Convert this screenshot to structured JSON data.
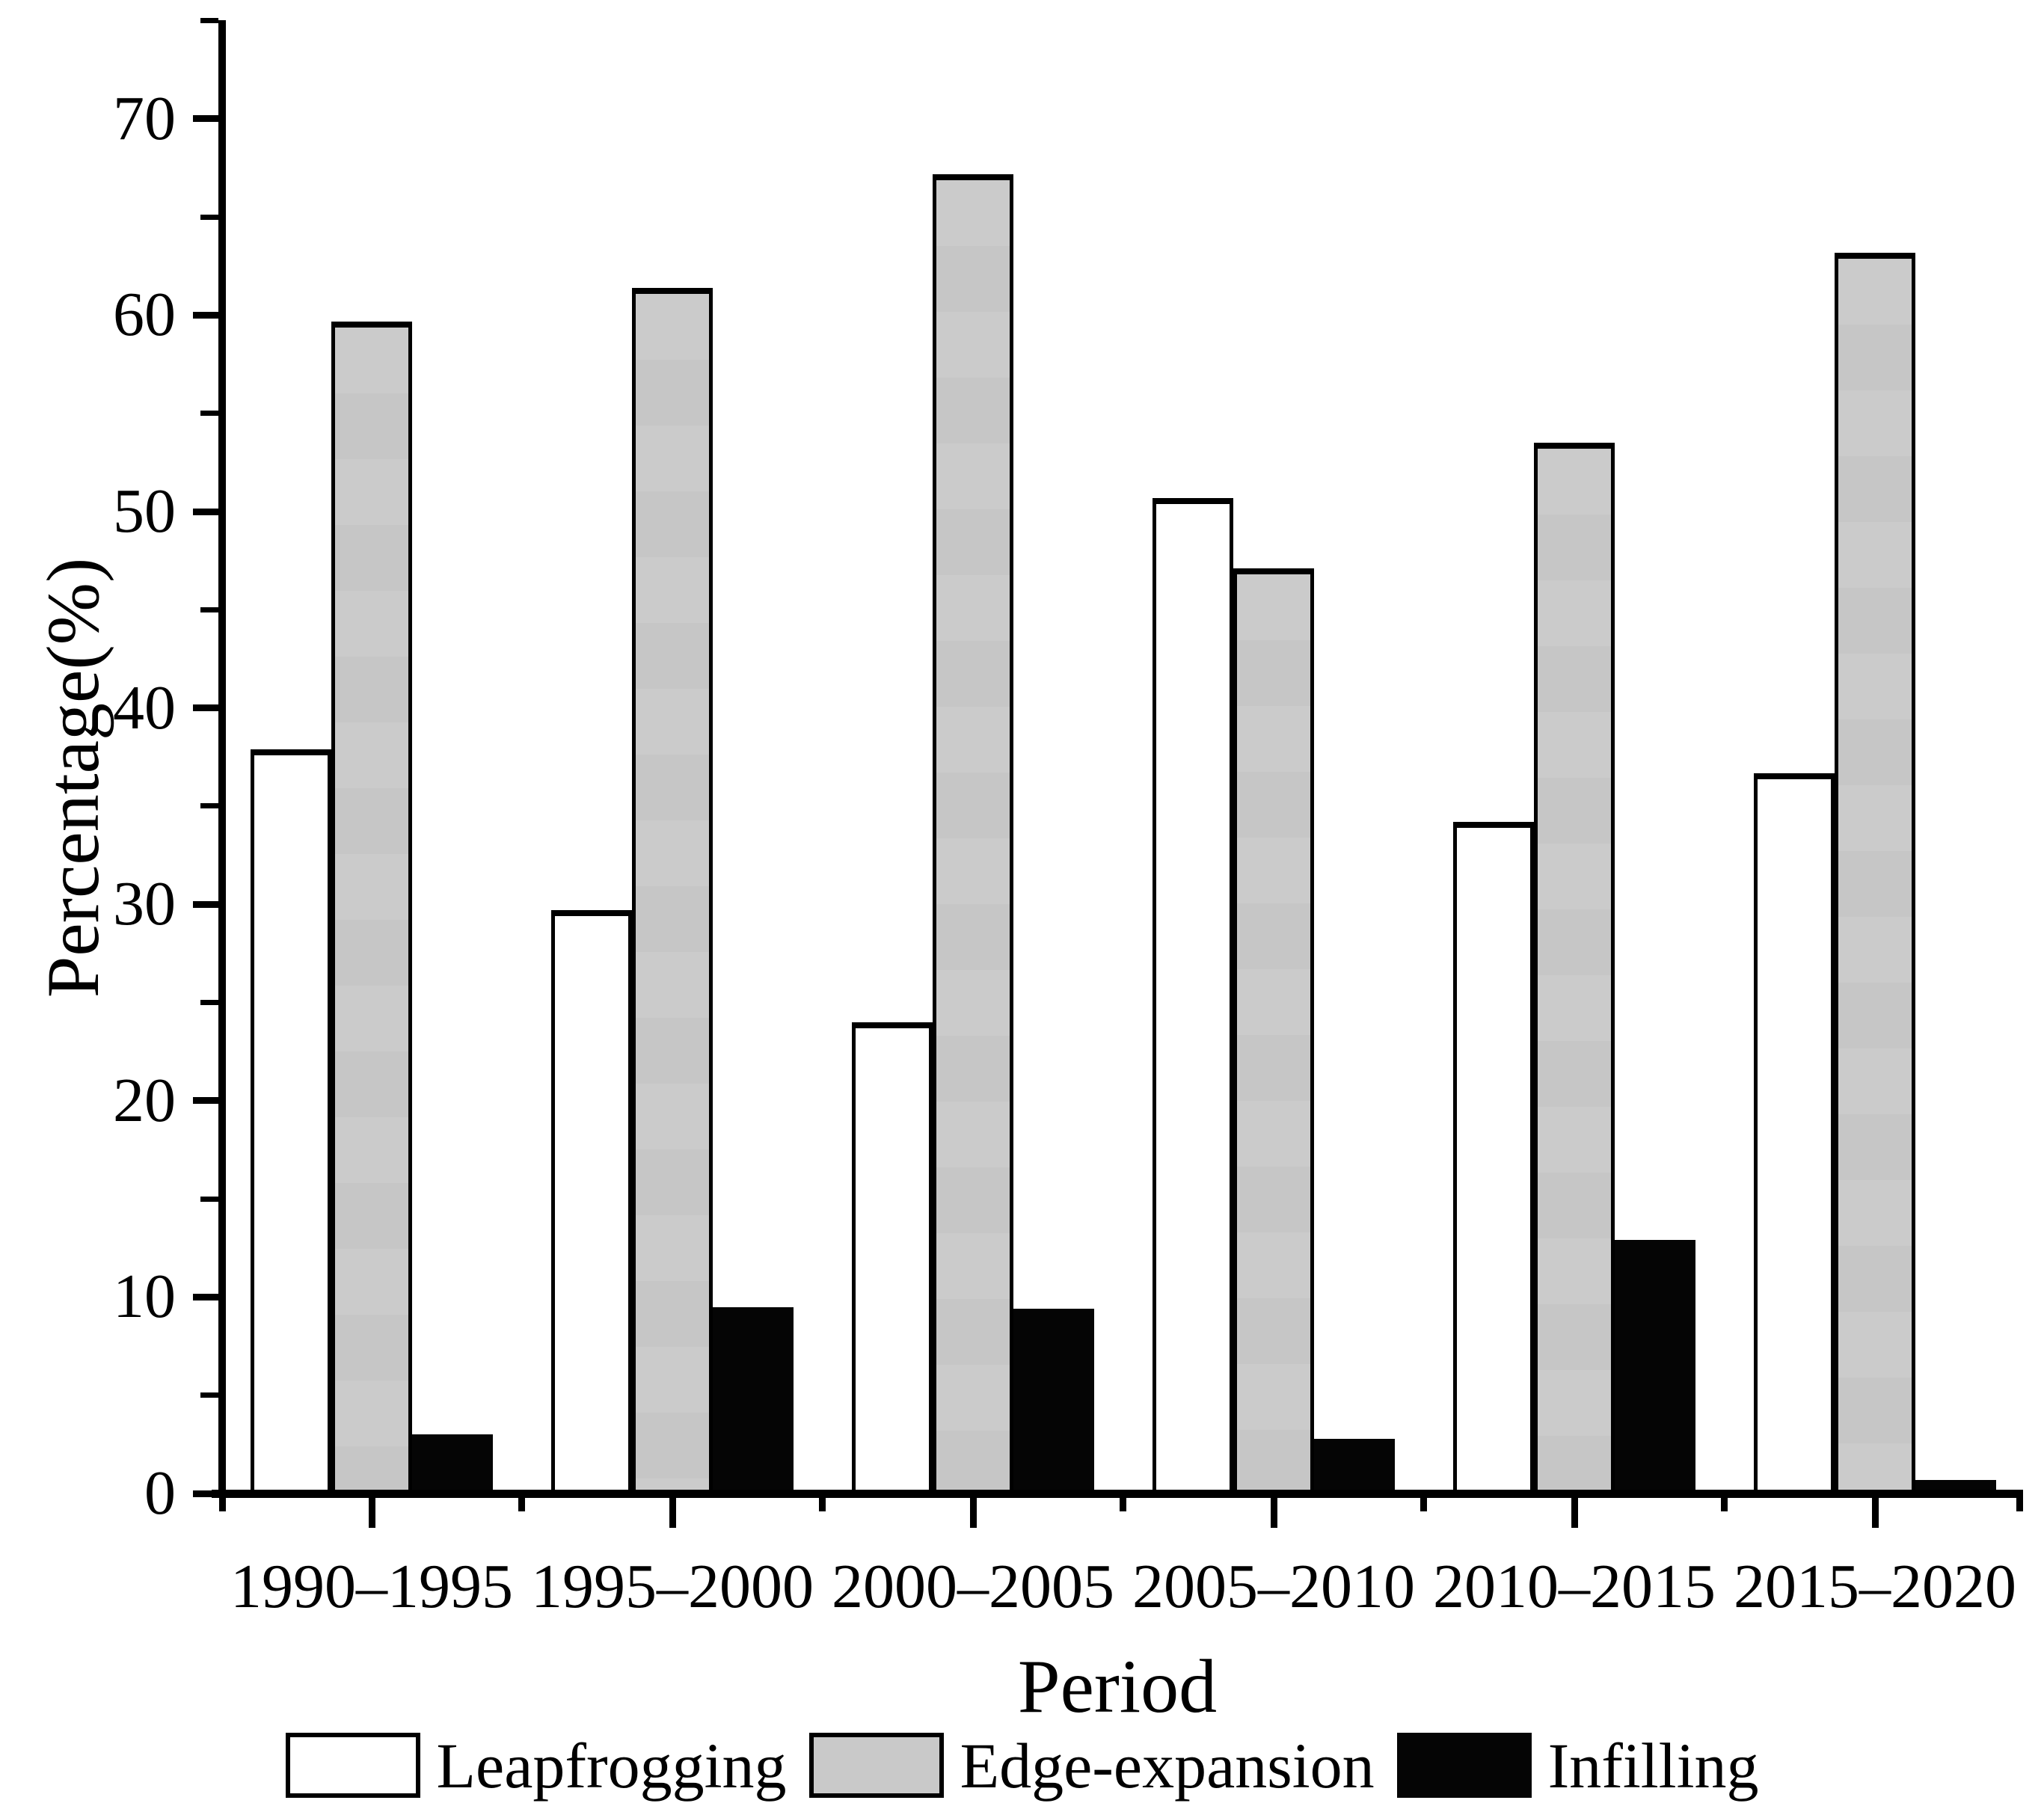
{
  "chart_data": {
    "type": "bar",
    "title": "",
    "xlabel": "Period",
    "ylabel": "Percentage(%)",
    "categories": [
      "1990–1995",
      "1995–2000",
      "2000–2005",
      "2005–2010",
      "2010–2015",
      "2015–2020"
    ],
    "series": [
      {
        "name": "Leapfrogging",
        "color": "#ffffff",
        "values": [
          37.7,
          29.5,
          23.8,
          50.5,
          34.0,
          36.5
        ]
      },
      {
        "name": "Edge-expansion",
        "color": "#c9c9c9",
        "values": [
          59.5,
          61.2,
          67.0,
          46.9,
          53.3,
          63.0
        ]
      },
      {
        "name": "Infilling",
        "color": "#050505",
        "values": [
          2.8,
          9.3,
          9.2,
          2.6,
          12.7,
          0.5
        ]
      }
    ],
    "ylim": [
      0,
      75
    ],
    "y_major_ticks": [
      0,
      10,
      20,
      30,
      40,
      50,
      60,
      70
    ],
    "y_minor_tick_step": 5,
    "grid": false,
    "legend_position": "bottom",
    "bar_border_color": "#000000",
    "axis_color": "#000000"
  }
}
